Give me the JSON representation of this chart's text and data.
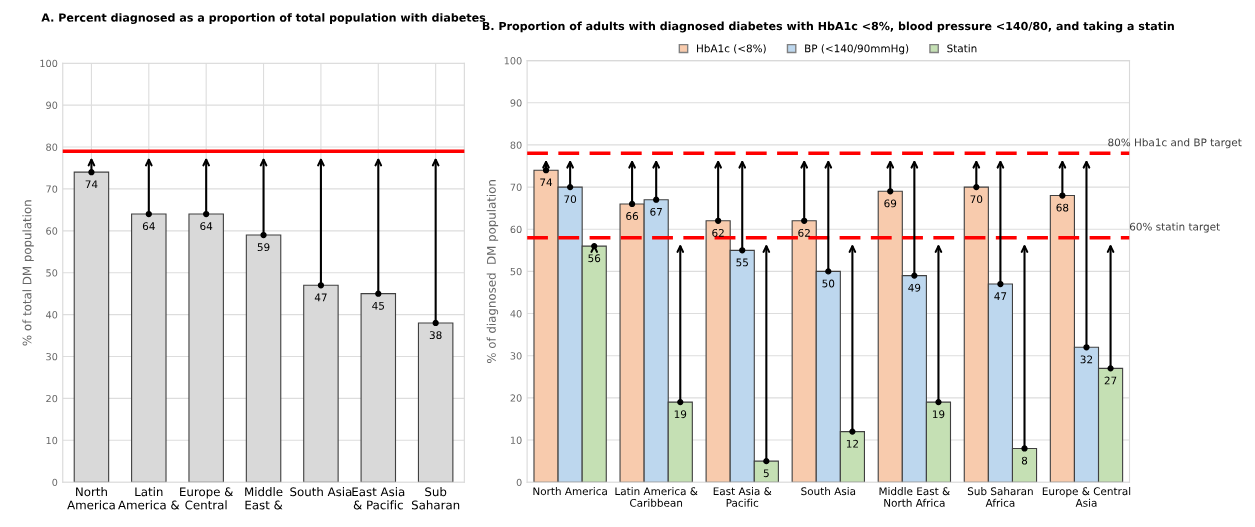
{
  "chart_data": [
    {
      "type": "bar",
      "title": "A. Percent diagnosed as a proportion of total population with diabetes",
      "ylabel": "% of total DM population",
      "categories": [
        "North\nAmerica",
        "Latin\nAmerica &",
        "Europe &\nCentral",
        "Middle\nEast &",
        "South Asia",
        "East Asia\n& Pacific",
        "Sub\nSaharan"
      ],
      "series": [
        {
          "color": "#d9d9d9",
          "values": [
            74,
            64,
            64,
            59,
            47,
            45,
            38
          ]
        }
      ],
      "ylim": [
        0,
        100
      ],
      "yticks": [
        0,
        10,
        20,
        30,
        40,
        50,
        60,
        70,
        80,
        90,
        100
      ],
      "grid": true,
      "data_labels": true,
      "ref_lines": [
        {
          "axis": "y",
          "value": 79,
          "color": "#ff0000",
          "line_style": "solid"
        }
      ]
    },
    {
      "type": "bar",
      "title": "B. Proportion of adults with diagnosed diabetes with HbA1c <8%, blood pressure <140/80, and taking a statin",
      "ylabel": "% of diagnosed  DM population",
      "categories": [
        "North America",
        "Latin America &\nCaribbean",
        "East Asia &\nPacific",
        "South Asia",
        "Middle East &\nNorth Africa",
        "Sub Saharan\nAfrica",
        "Europe & Central\nAsia"
      ],
      "series": [
        {
          "name": "HbA1c (<8%)",
          "color": "#f8cbad",
          "values": [
            74,
            66,
            62,
            62,
            69,
            70,
            68
          ]
        },
        {
          "name": "BP (<140/90mmHg)",
          "color": "#bdd7ee",
          "values": [
            70,
            67,
            55,
            50,
            49,
            47,
            32
          ]
        },
        {
          "name": "Statin",
          "color": "#c5e0b4",
          "values": [
            56,
            19,
            5,
            12,
            19,
            8,
            27
          ]
        }
      ],
      "ylim": [
        0,
        100
      ],
      "yticks": [
        0,
        10,
        20,
        30,
        40,
        50,
        60,
        70,
        80,
        90,
        100
      ],
      "grid": "y",
      "data_labels": true,
      "legend": "top",
      "ref_lines": [
        {
          "axis": "y",
          "value": 78,
          "label": "80% Hba1c and BP target",
          "color": "#ff0000",
          "line_style": "dashed"
        },
        {
          "axis": "y",
          "value": 58,
          "label": "60% statin target",
          "color": "#ff0000",
          "line_style": "dashed"
        }
      ]
    }
  ]
}
